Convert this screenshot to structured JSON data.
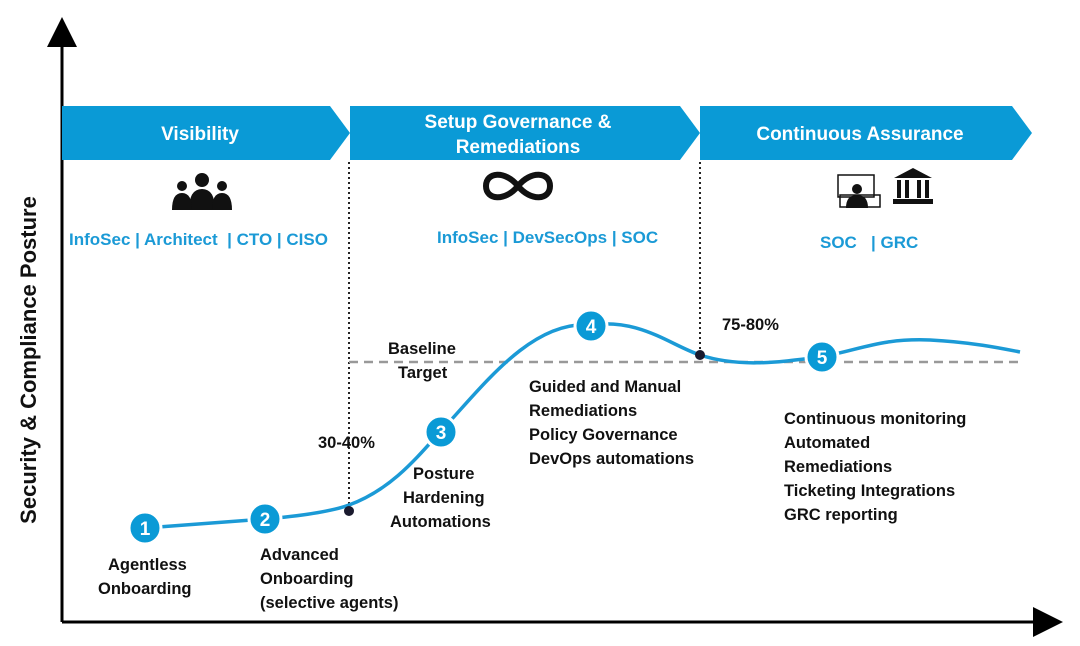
{
  "colors": {
    "accent": "#0a9ad6",
    "axis": "#000000",
    "baseline": "#999999"
  },
  "y_axis_label": "Security & Compliance Posture",
  "phases": [
    {
      "title_lines": [
        "Visibility"
      ],
      "roles": "InfoSec | Architect  | CTO | CISO",
      "icon": "people-group-icon"
    },
    {
      "title_lines": [
        "Setup Governance &",
        "Remediations"
      ],
      "roles": "InfoSec | DevSecOps | SOC",
      "icon": "infinity-icon"
    },
    {
      "title_lines": [
        "Continuous Assurance"
      ],
      "roles": "SOC   | GRC",
      "icon": "monitor-user-icon, bank-icon"
    }
  ],
  "baseline_label": [
    "Baseline",
    "Target"
  ],
  "markers": {
    "low": "30-40%",
    "high": "75-80%"
  },
  "steps": [
    {
      "n": "1",
      "lines": [
        "Agentless",
        "Onboarding"
      ]
    },
    {
      "n": "2",
      "lines": [
        "Advanced",
        "Onboarding",
        "(selective agents)"
      ]
    },
    {
      "n": "3",
      "lines": [
        "Posture",
        "Hardening",
        "Automations"
      ]
    },
    {
      "n": "4",
      "lines": [
        "Guided and Manual",
        "Remediations",
        "Policy Governance",
        "DevOps automations"
      ]
    },
    {
      "n": "5",
      "lines": [
        "Continuous monitoring",
        "Automated",
        "Remediations",
        "Ticketing Integrations",
        "GRC reporting"
      ]
    }
  ]
}
